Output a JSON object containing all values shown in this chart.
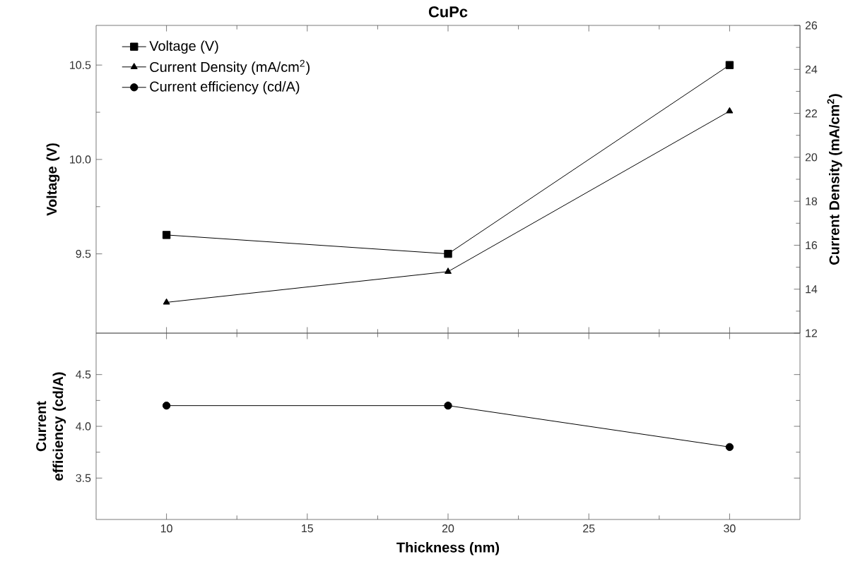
{
  "chart_data": [
    {
      "type": "line",
      "title": "CuPc",
      "ylabel": "Voltage (V)",
      "y2label": "Current Density (mA/cm$^{2}$)",
      "x": [
        10,
        20,
        30
      ],
      "xlim": [
        7.5,
        32.5
      ],
      "xticks": [
        10,
        15,
        20,
        25,
        30
      ],
      "ylim": [
        9.08,
        10.71
      ],
      "yticks": [
        9.5,
        {
          "value": 10,
          "label": "10.0"
        },
        10.5
      ],
      "y2lim": [
        12,
        26
      ],
      "y2ticks": [
        12,
        14,
        16,
        18,
        20,
        22,
        24,
        26
      ],
      "tick_labels": "y",
      "legend": "top left",
      "grid": false,
      "series": [
        {
          "name": "Voltage (V)",
          "color": "#000000",
          "marker": "square",
          "values": [
            9.6,
            9.5,
            10.5
          ]
        },
        {
          "name": "Current Density (mA/cm$^{2}$)",
          "color": "#000000",
          "marker": "triangle",
          "axis": "y2",
          "values": [
            13.4,
            14.8,
            22.1
          ]
        }
      ]
    },
    {
      "type": "line",
      "xlabel": "Thickness (nm)",
      "ylabel": "Current efficiency (cd/A)",
      "x": [
        10,
        20,
        30
      ],
      "xlim": [
        7.5,
        32.5
      ],
      "xticks": [
        10,
        15,
        20,
        25,
        30
      ],
      "ylim": [
        3.1,
        4.9
      ],
      "yticks": [
        3.5,
        {
          "value": 4,
          "label": "4.0"
        },
        4.5
      ],
      "grid": false,
      "legend": "top left",
      "series": [
        {
          "name": "Current efficiency (cd/A)",
          "color": "#000000",
          "marker": "circle",
          "values": [
            4.2,
            4.2,
            3.8
          ]
        }
      ]
    }
  ]
}
